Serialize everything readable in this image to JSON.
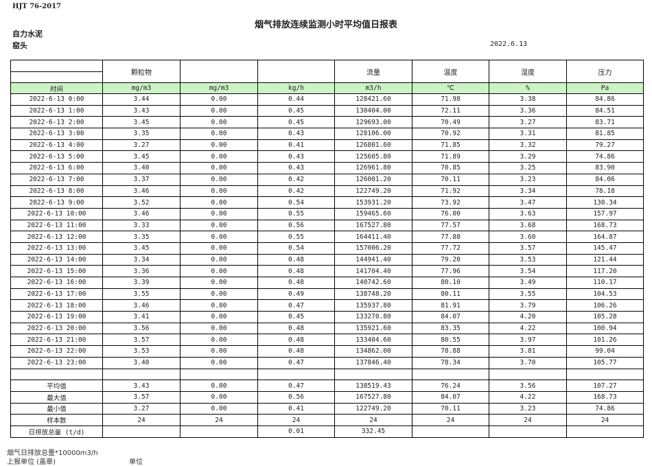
{
  "header": {
    "standard": "HJT  76-2017",
    "title": "烟气排放连续监测小时平均值日报表",
    "company": "自力水泥",
    "unit": "窑头",
    "date": "2022.6.13"
  },
  "columns": {
    "names": [
      "",
      "颗粒物",
      "",
      "",
      "流量",
      "温度",
      "湿度",
      "压力"
    ],
    "units": [
      "时间",
      "mg/m3",
      "mg/m3",
      "kg/h",
      "m3/h",
      "℃",
      "%",
      "Pa"
    ]
  },
  "rows": [
    [
      "2022-6-13 0:00",
      "3.44",
      "0.00",
      "0.44",
      "128421.60",
      "71.98",
      "3.38",
      "84.86"
    ],
    [
      "2022-6-13 1:00",
      "3.43",
      "0.00",
      "0.45",
      "130404.00",
      "72.11",
      "3.36",
      "84.51"
    ],
    [
      "2022-6-13 2:00",
      "3.45",
      "0.00",
      "0.45",
      "129693.00",
      "70.49",
      "3.27",
      "83.71"
    ],
    [
      "2022-6-13 3:00",
      "3.35",
      "0.00",
      "0.43",
      "128106.00",
      "70.92",
      "3.31",
      "81.85"
    ],
    [
      "2022-6-13 4:00",
      "3.27",
      "0.00",
      "0.41",
      "126801.60",
      "71.85",
      "3.32",
      "79.27"
    ],
    [
      "2022-6-13 5:00",
      "3.45",
      "0.00",
      "0.43",
      "125605.80",
      "71.89",
      "3.29",
      "74.86"
    ],
    [
      "2022-6-13 6:00",
      "3.40",
      "0.00",
      "0.43",
      "126961.80",
      "70.85",
      "3.25",
      "83.90"
    ],
    [
      "2022-6-13 7:00",
      "3.37",
      "0.00",
      "0.42",
      "126001.20",
      "70.11",
      "3.23",
      "84.06"
    ],
    [
      "2022-6-13 8:00",
      "3.46",
      "0.00",
      "0.42",
      "122749.20",
      "71.92",
      "3.34",
      "78.18"
    ],
    [
      "2022-6-13 9:00",
      "3.52",
      "0.00",
      "0.54",
      "153931.20",
      "73.92",
      "3.47",
      "130.34"
    ],
    [
      "2022-6-13 10:00",
      "3.46",
      "0.00",
      "0.55",
      "159465.60",
      "76.00",
      "3.63",
      "157.97"
    ],
    [
      "2022-6-13 11:00",
      "3.33",
      "0.00",
      "0.56",
      "167527.80",
      "77.57",
      "3.68",
      "168.73"
    ],
    [
      "2022-6-13 12:00",
      "3.35",
      "0.00",
      "0.55",
      "164411.40",
      "77.88",
      "3.60",
      "164.87"
    ],
    [
      "2022-6-13 13:00",
      "3.45",
      "0.00",
      "0.54",
      "157006.20",
      "77.72",
      "3.57",
      "145.47"
    ],
    [
      "2022-6-13 14:00",
      "3.34",
      "0.00",
      "0.48",
      "144941.40",
      "79.20",
      "3.53",
      "121.44"
    ],
    [
      "2022-6-13 15:00",
      "3.36",
      "0.00",
      "0.48",
      "141704.40",
      "77.96",
      "3.54",
      "117.20"
    ],
    [
      "2022-6-13 16:00",
      "3.39",
      "0.00",
      "0.48",
      "140742.60",
      "80.10",
      "3.49",
      "110.17"
    ],
    [
      "2022-6-13 17:00",
      "3.55",
      "0.00",
      "0.49",
      "138748.20",
      "80.11",
      "3.55",
      "104.53"
    ],
    [
      "2022-6-13 18:00",
      "3.46",
      "0.00",
      "0.47",
      "135937.80",
      "81.91",
      "3.79",
      "106.26"
    ],
    [
      "2022-6-13 19:00",
      "3.41",
      "0.00",
      "0.45",
      "133270.80",
      "84.07",
      "4.20",
      "105.28"
    ],
    [
      "2022-6-13 20:00",
      "3.56",
      "0.00",
      "0.48",
      "135921.60",
      "83.35",
      "4.22",
      "100.94"
    ],
    [
      "2022-6-13 21:00",
      "3.57",
      "0.00",
      "0.48",
      "133404.60",
      "80.55",
      "3.97",
      "101.26"
    ],
    [
      "2022-6-13 22:00",
      "3.53",
      "0.00",
      "0.48",
      "134862.00",
      "78.88",
      "3.81",
      "99.04"
    ],
    [
      "2022-6-13 23:00",
      "3.40",
      "0.00",
      "0.47",
      "137846.40",
      "78.34",
      "3.70",
      "105.77"
    ]
  ],
  "stats": [
    [
      "平均值",
      "3.43",
      "0.00",
      "0.47",
      "138519.43",
      "76.24",
      "3.56",
      "107.27"
    ],
    [
      "最大值",
      "3.57",
      "0.00",
      "0.56",
      "167527.80",
      "84.07",
      "4.22",
      "168.73"
    ],
    [
      "最小值",
      "3.27",
      "0.00",
      "0.41",
      "122749.20",
      "70.11",
      "3.23",
      "74.86"
    ],
    [
      "样本数",
      "24",
      "24",
      "24",
      "24",
      "24",
      "24",
      "24"
    ],
    [
      "日排放总量 (t/d)",
      "",
      "",
      "0.01",
      "332.45",
      "",
      "",
      ""
    ]
  ],
  "footer": {
    "note": "烟气日排放总量*10000m3/h",
    "reporter_label": "上报单位 (盖章)",
    "unit_label": "单位"
  },
  "colors": {
    "unit_row_bg": "#ccf3c6"
  }
}
